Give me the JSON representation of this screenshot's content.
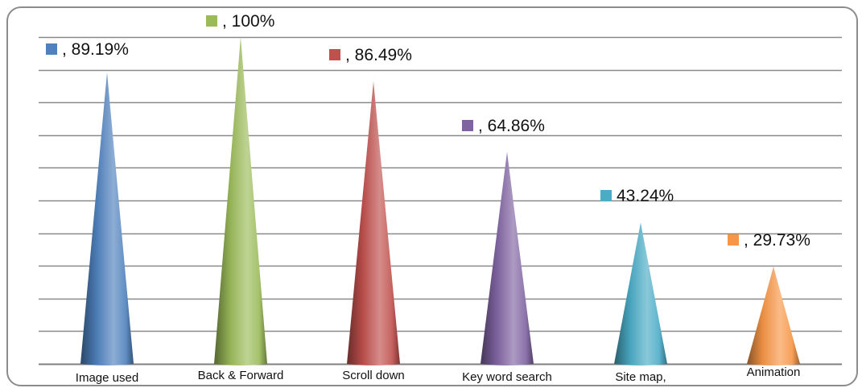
{
  "chart_data": {
    "type": "bar",
    "bar_shape": "cone",
    "categories": [
      "Image used",
      "Back & Forward",
      "Scroll down",
      "Key word search",
      "Site map,",
      "Animation"
    ],
    "values": [
      89.19,
      100,
      86.49,
      64.86,
      43.24,
      29.73
    ],
    "data_labels": [
      ", 89.19%",
      ", 100%",
      ", 86.49%",
      ", 64.86%",
      "43.24%",
      ", 29.73%"
    ],
    "colors": [
      "#4F81BD",
      "#9BBB59",
      "#C0504D",
      "#8064A2",
      "#4BACC6",
      "#F79646"
    ],
    "ylim": [
      0,
      100
    ],
    "grid": true,
    "legend": "none",
    "title": "",
    "xlabel": "",
    "ylabel": ""
  }
}
